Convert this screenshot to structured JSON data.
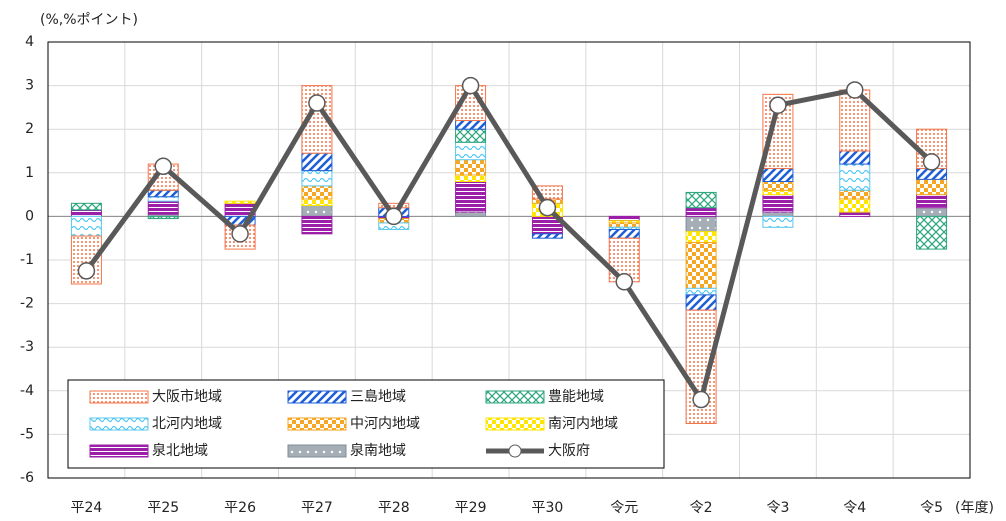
{
  "chart_data": {
    "type": "stacked-bar-line",
    "y_unit_label": "(%,%ポイント)",
    "x_unit_label": "(年度)",
    "categories": [
      "平24",
      "平25",
      "平26",
      "平27",
      "平28",
      "平29",
      "平30",
      "令元",
      "令2",
      "令3",
      "令4",
      "令5"
    ],
    "ylim": [
      -6,
      4
    ],
    "yticks": [
      -6,
      -5,
      -4,
      -3,
      -2,
      -1,
      0,
      1,
      2,
      3,
      4
    ],
    "grid": true,
    "legend": "lower left",
    "series": [
      {
        "name": "大阪市地域",
        "color": "#f4754a",
        "values": [
          -1.1,
          0.6,
          -0.55,
          1.55,
          0.1,
          0.8,
          0.3,
          -1.0,
          -2.6,
          1.7,
          1.4,
          0.9
        ]
      },
      {
        "name": "三島地域",
        "color": "#1f5fd6",
        "values": [
          0,
          0.15,
          -0.2,
          0.4,
          0.2,
          0.2,
          -0.1,
          -0.2,
          -0.35,
          0.3,
          0.3,
          0.25
        ]
      },
      {
        "name": "豊能地域",
        "color": "#2aa57a",
        "values": [
          0.15,
          -0.05,
          0,
          0,
          0,
          0.3,
          0,
          0,
          0.35,
          0,
          0,
          -0.75
        ]
      },
      {
        "name": "北河内地域",
        "color": "#5bc8f0",
        "values": [
          -0.45,
          0.1,
          0,
          0.35,
          -0.15,
          0.4,
          0,
          -0.05,
          -0.15,
          -0.25,
          0.6,
          0
        ]
      },
      {
        "name": "中河内地域",
        "color": "#f5a623",
        "values": [
          0,
          0,
          0,
          0.3,
          -0.1,
          0.35,
          0.1,
          -0.1,
          -1.05,
          0.2,
          0.2,
          0.35
        ]
      },
      {
        "name": "南河内地域",
        "color": "#ffe600",
        "values": [
          0,
          0,
          0.05,
          0.15,
          0,
          0.15,
          0.3,
          -0.05,
          -0.25,
          0.1,
          0.3,
          0
        ]
      },
      {
        "name": "泉北地域",
        "color": "#9b1fa8",
        "values": [
          0.15,
          0.3,
          0.3,
          -0.4,
          -0.05,
          0.7,
          -0.4,
          -0.1,
          0.2,
          0.4,
          0.1,
          0.3
        ]
      },
      {
        "name": "泉南地域",
        "color": "#7f8c99",
        "values": [
          0,
          0.05,
          0,
          0.25,
          0,
          0.1,
          0,
          0,
          -0.35,
          0.1,
          0,
          0.2
        ]
      },
      {
        "name": "大阪府",
        "color": "#595959",
        "type": "line",
        "values": [
          -1.25,
          1.15,
          -0.4,
          2.6,
          0,
          3.0,
          0.2,
          -1.5,
          -4.2,
          2.55,
          2.9,
          1.25
        ]
      }
    ]
  }
}
